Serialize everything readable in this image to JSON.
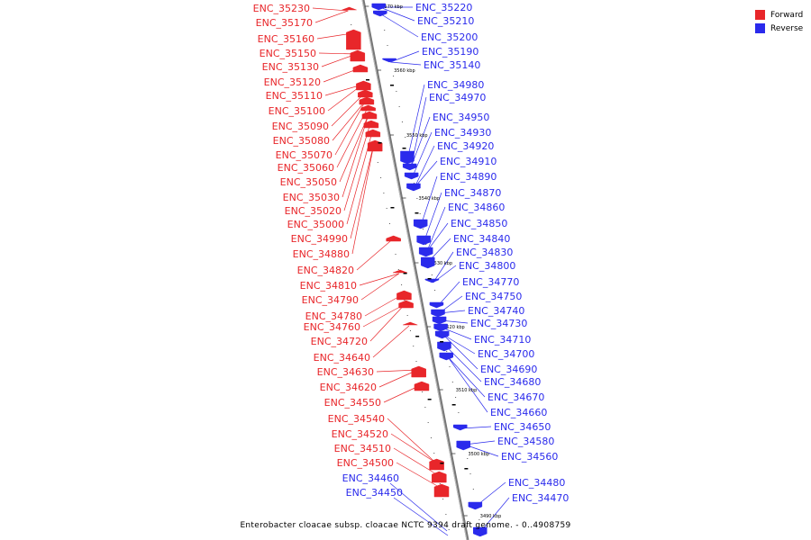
{
  "colors": {
    "forward": "#e8262a",
    "reverse": "#2a2aec",
    "axis": "#888888"
  },
  "legend": {
    "forward": "Forward",
    "reverse": "Reverse"
  },
  "caption": "Enterobacter cloacae subsp. cloacae NCTC 9394 draft genome. - 0..4908759",
  "axis_ticks": [
    "3570 kbp",
    "3560 kbp",
    "3550 kbp",
    "3540 kbp",
    "3530 kbp",
    "3520 kbp",
    "3510 kbp",
    "3500 kbp",
    "3490 kbp"
  ],
  "forward_labels": [
    "ENC_35230",
    "ENC_35170",
    "ENC_35160",
    "ENC_35150",
    "ENC_35130",
    "ENC_35120",
    "ENC_35110",
    "ENC_35100",
    "ENC_35090",
    "ENC_35080",
    "ENC_35070",
    "ENC_35060",
    "ENC_35050",
    "ENC_35030",
    "ENC_35020",
    "ENC_35000",
    "ENC_34990",
    "ENC_34880",
    "ENC_34820",
    "ENC_34810",
    "ENC_34790",
    "ENC_34780",
    "ENC_34760",
    "ENC_34720",
    "ENC_34640",
    "ENC_34630",
    "ENC_34620",
    "ENC_34550",
    "ENC_34540",
    "ENC_34520",
    "ENC_34510",
    "ENC_34500"
  ],
  "reverse_labels_left": [
    "ENC_34460",
    "ENC_34450"
  ],
  "reverse_labels": [
    "ENC_35220",
    "ENC_35210",
    "ENC_35200",
    "ENC_35190",
    "ENC_35140",
    "ENC_34980",
    "ENC_34970",
    "ENC_34950",
    "ENC_34930",
    "ENC_34920",
    "ENC_34910",
    "ENC_34890",
    "ENC_34870",
    "ENC_34860",
    "ENC_34850",
    "ENC_34840",
    "ENC_34830",
    "ENC_34800",
    "ENC_34770",
    "ENC_34750",
    "ENC_34740",
    "ENC_34730",
    "ENC_34710",
    "ENC_34700",
    "ENC_34690",
    "ENC_34680",
    "ENC_34670",
    "ENC_34660",
    "ENC_34650",
    "ENC_34580",
    "ENC_34560",
    "ENC_34480",
    "ENC_34470"
  ]
}
